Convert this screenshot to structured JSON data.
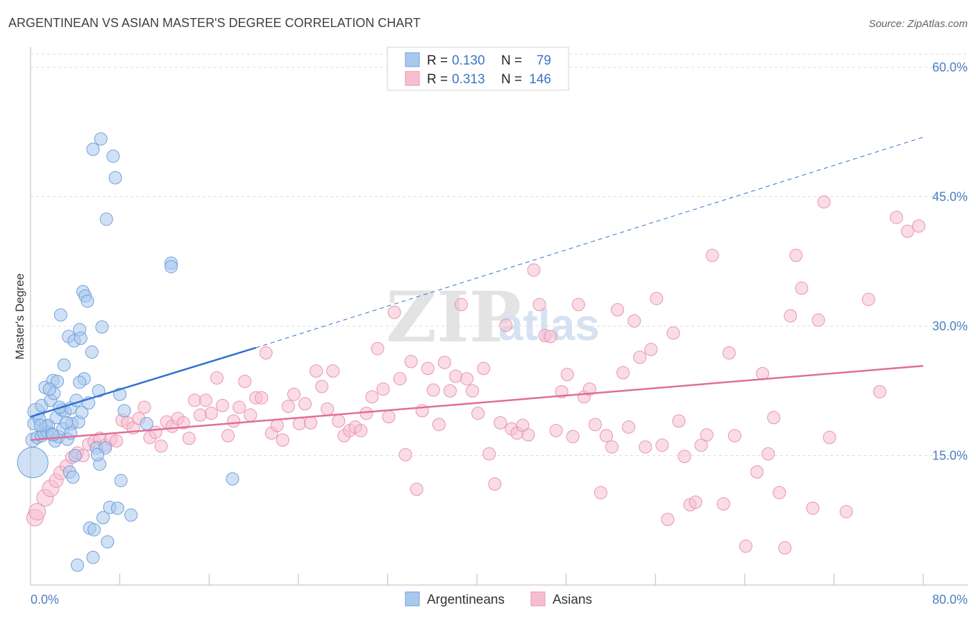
{
  "chart_data": {
    "type": "scatter",
    "title": "ARGENTINEAN VS ASIAN MASTER'S DEGREE CORRELATION CHART",
    "source": "Source: ZipAtlas.com",
    "ylabel": "Master's Degree",
    "xlim": [
      0,
      80
    ],
    "ylim": [
      0,
      60
    ],
    "y_ticks": [
      {
        "value": 15,
        "label": "15.0%"
      },
      {
        "value": 30,
        "label": "30.0%"
      },
      {
        "value": 45,
        "label": "45.0%"
      },
      {
        "value": 60,
        "label": "60.0%"
      }
    ],
    "x_tick_labels": {
      "min": "0.0%",
      "max": "80.0%"
    },
    "x_tick_values": [
      0,
      8,
      16,
      24,
      32,
      40,
      48,
      56,
      64,
      72,
      80
    ],
    "grid": true,
    "legend": {
      "placement": "top-center",
      "rows": [
        {
          "r_label": "R =",
          "r_value": "0.130",
          "n_label": "N =",
          "n_value": "79"
        },
        {
          "r_label": "R =",
          "r_value": "0.313",
          "n_label": "N =",
          "n_value": "146"
        }
      ]
    },
    "bottom_legend": [
      "Argentineans",
      "Asians"
    ],
    "watermark": {
      "zip": "ZIP",
      "atlas": "atlas"
    },
    "colors": {
      "blue_fill": "#a9c8ee",
      "blue_stroke": "#6f9fd8",
      "blue_line": "#2f6fd1",
      "pink_fill": "#f6bfd0",
      "pink_stroke": "#e993b0",
      "pink_line": "#e06d98",
      "grid": "#dddddd",
      "tick_text": "#4a7fc1"
    },
    "series": [
      {
        "name": "Argentineans",
        "trend": {
          "x0": 0,
          "y0": 19.5,
          "x1": 20.2,
          "y1": 27.5,
          "dash_to_x": 80,
          "dash_to_y": 51.9
        },
        "points": [
          [
            0.2,
            14.2,
            22
          ],
          [
            0.2,
            16.8,
            10
          ],
          [
            0.3,
            18.7,
            9
          ],
          [
            0.5,
            20.1,
            12
          ],
          [
            0.6,
            17.1,
            9
          ],
          [
            0.8,
            19.2,
            9
          ],
          [
            1.0,
            20.8,
            9
          ],
          [
            1.0,
            17.3,
            9
          ],
          [
            1.2,
            17.6,
            9
          ],
          [
            1.3,
            22.9,
            9
          ],
          [
            1.4,
            18.4,
            9
          ],
          [
            1.5,
            17.7,
            9
          ],
          [
            1.6,
            18.5,
            9
          ],
          [
            1.8,
            21.4,
            9
          ],
          [
            1.9,
            17.5,
            9
          ],
          [
            2.0,
            23.7,
            9
          ],
          [
            2.1,
            22.2,
            9
          ],
          [
            2.2,
            16.7,
            9
          ],
          [
            2.3,
            19.4,
            9
          ],
          [
            2.4,
            23.6,
            9
          ],
          [
            2.5,
            17.2,
            9
          ],
          [
            2.7,
            31.3,
            9
          ],
          [
            2.8,
            20.3,
            9
          ],
          [
            2.9,
            18.1,
            9
          ],
          [
            3.0,
            25.5,
            9
          ],
          [
            3.1,
            20.1,
            9
          ],
          [
            3.3,
            16.9,
            9
          ],
          [
            3.4,
            28.8,
            9
          ],
          [
            3.5,
            13.1,
            9
          ],
          [
            3.6,
            20.5,
            9
          ],
          [
            3.7,
            18.7,
            9
          ],
          [
            3.8,
            12.5,
            9
          ],
          [
            3.9,
            28.3,
            9
          ],
          [
            4.0,
            15.0,
            9
          ],
          [
            4.1,
            21.4,
            9
          ],
          [
            4.2,
            2.3,
            9
          ],
          [
            4.3,
            18.9,
            9
          ],
          [
            4.4,
            29.6,
            9
          ],
          [
            4.5,
            28.6,
            9
          ],
          [
            4.6,
            20.0,
            9
          ],
          [
            4.7,
            34.0,
            9
          ],
          [
            4.8,
            23.9,
            9
          ],
          [
            4.9,
            33.5,
            9
          ],
          [
            5.1,
            32.9,
            9
          ],
          [
            5.2,
            21.1,
            9
          ],
          [
            5.3,
            6.6,
            9
          ],
          [
            5.5,
            27.0,
            9
          ],
          [
            5.6,
            3.2,
            9
          ],
          [
            5.7,
            6.4,
            9
          ],
          [
            5.9,
            15.9,
            9
          ],
          [
            6.1,
            22.5,
            9
          ],
          [
            6.2,
            14.0,
            9
          ],
          [
            6.3,
            51.7,
            9
          ],
          [
            6.4,
            29.9,
            9
          ],
          [
            6.5,
            7.8,
            9
          ],
          [
            6.7,
            15.9,
            9
          ],
          [
            6.8,
            42.4,
            9
          ],
          [
            6.9,
            5.0,
            9
          ],
          [
            7.1,
            9.0,
            9
          ],
          [
            5.6,
            50.5,
            9
          ],
          [
            7.4,
            49.7,
            9
          ],
          [
            7.6,
            47.2,
            9
          ],
          [
            7.8,
            8.9,
            9
          ],
          [
            8.0,
            22.1,
            9
          ],
          [
            8.1,
            12.1,
            9
          ],
          [
            9.0,
            8.1,
            9
          ],
          [
            10.4,
            18.7,
            9
          ],
          [
            12.6,
            37.3,
            9
          ],
          [
            12.6,
            36.9,
            9
          ],
          [
            18.1,
            12.3,
            9
          ],
          [
            4.4,
            23.5,
            9
          ],
          [
            3.2,
            18.8,
            9
          ],
          [
            2.6,
            20.6,
            9
          ],
          [
            1.7,
            22.7,
            9
          ],
          [
            0.9,
            18.5,
            9
          ],
          [
            3.6,
            17.6,
            9
          ],
          [
            2.0,
            17.4,
            9
          ],
          [
            6.0,
            15.1,
            9
          ],
          [
            8.4,
            20.2,
            9
          ]
        ]
      },
      {
        "name": "Asians",
        "trend": {
          "x0": 0,
          "y0": 16.8,
          "x1": 80,
          "y1": 25.4
        },
        "points": [
          [
            0.4,
            7.8,
            12
          ],
          [
            0.6,
            8.5,
            12
          ],
          [
            1.3,
            10.1,
            12
          ],
          [
            1.8,
            11.2,
            12
          ],
          [
            2.3,
            12.1,
            10
          ],
          [
            2.7,
            13.0,
            10
          ],
          [
            3.2,
            13.8,
            9
          ],
          [
            3.7,
            14.8,
            9
          ],
          [
            4.2,
            15.3,
            9
          ],
          [
            4.7,
            15.0,
            9
          ],
          [
            5.2,
            16.3,
            9
          ],
          [
            5.7,
            16.6,
            9
          ],
          [
            6.2,
            17.0,
            9
          ],
          [
            6.7,
            16.2,
            9
          ],
          [
            7.2,
            16.9,
            9
          ],
          [
            7.7,
            16.7,
            9
          ],
          [
            8.2,
            19.1,
            9
          ],
          [
            8.7,
            18.8,
            9
          ],
          [
            9.2,
            18.2,
            9
          ],
          [
            9.7,
            19.3,
            9
          ],
          [
            10.2,
            20.6,
            9
          ],
          [
            10.7,
            17.1,
            9
          ],
          [
            11.2,
            17.7,
            9
          ],
          [
            11.7,
            16.1,
            9
          ],
          [
            12.2,
            18.9,
            9
          ],
          [
            12.7,
            18.4,
            9
          ],
          [
            13.2,
            19.3,
            9
          ],
          [
            13.7,
            18.8,
            9
          ],
          [
            14.2,
            17.0,
            9
          ],
          [
            14.7,
            21.4,
            9
          ],
          [
            15.2,
            19.7,
            9
          ],
          [
            15.7,
            21.4,
            9
          ],
          [
            16.2,
            19.9,
            9
          ],
          [
            16.7,
            24.0,
            9
          ],
          [
            17.2,
            20.8,
            9
          ],
          [
            17.7,
            17.3,
            9
          ],
          [
            18.2,
            19.0,
            9
          ],
          [
            18.7,
            20.6,
            9
          ],
          [
            19.2,
            23.6,
            9
          ],
          [
            19.7,
            19.7,
            9
          ],
          [
            20.2,
            21.7,
            9
          ],
          [
            20.7,
            21.7,
            9
          ],
          [
            21.1,
            26.9,
            9
          ],
          [
            21.6,
            17.6,
            9
          ],
          [
            22.1,
            18.5,
            9
          ],
          [
            22.6,
            16.8,
            9
          ],
          [
            23.1,
            20.7,
            9
          ],
          [
            23.6,
            22.1,
            9
          ],
          [
            24.1,
            18.7,
            9
          ],
          [
            24.6,
            21.0,
            9
          ],
          [
            25.1,
            18.8,
            9
          ],
          [
            25.6,
            24.8,
            9
          ],
          [
            26.1,
            23.0,
            9
          ],
          [
            26.6,
            20.4,
            9
          ],
          [
            27.1,
            24.8,
            9
          ],
          [
            27.6,
            19.0,
            9
          ],
          [
            28.1,
            17.3,
            9
          ],
          [
            28.6,
            17.9,
            9
          ],
          [
            29.1,
            18.3,
            9
          ],
          [
            29.6,
            17.9,
            9
          ],
          [
            30.1,
            19.9,
            9
          ],
          [
            30.6,
            21.8,
            9
          ],
          [
            31.1,
            27.4,
            9
          ],
          [
            31.6,
            22.7,
            9
          ],
          [
            32.1,
            19.5,
            9
          ],
          [
            32.6,
            31.6,
            9
          ],
          [
            33.1,
            23.9,
            9
          ],
          [
            33.6,
            15.1,
            9
          ],
          [
            34.1,
            25.9,
            9
          ],
          [
            34.6,
            11.1,
            9
          ],
          [
            35.1,
            20.2,
            9
          ],
          [
            35.6,
            25.1,
            9
          ],
          [
            36.1,
            22.6,
            9
          ],
          [
            36.6,
            18.6,
            9
          ],
          [
            37.1,
            25.8,
            9
          ],
          [
            37.6,
            22.5,
            9
          ],
          [
            38.1,
            24.2,
            9
          ],
          [
            38.6,
            32.5,
            9
          ],
          [
            39.1,
            23.9,
            9
          ],
          [
            39.6,
            22.5,
            9
          ],
          [
            40.1,
            19.9,
            9
          ],
          [
            40.6,
            25.1,
            9
          ],
          [
            41.1,
            15.2,
            9
          ],
          [
            41.6,
            11.7,
            9
          ],
          [
            42.1,
            18.8,
            9
          ],
          [
            42.6,
            30.1,
            9
          ],
          [
            43.1,
            18.1,
            9
          ],
          [
            43.6,
            17.6,
            9
          ],
          [
            44.1,
            18.5,
            9
          ],
          [
            44.6,
            17.4,
            9
          ],
          [
            45.1,
            36.5,
            9
          ],
          [
            45.6,
            32.5,
            9
          ],
          [
            46.1,
            28.9,
            9
          ],
          [
            46.6,
            28.8,
            9
          ],
          [
            47.1,
            17.9,
            9
          ],
          [
            47.6,
            22.4,
            9
          ],
          [
            48.1,
            24.4,
            9
          ],
          [
            48.6,
            17.2,
            9
          ],
          [
            49.1,
            32.5,
            9
          ],
          [
            49.6,
            21.8,
            9
          ],
          [
            50.1,
            22.7,
            9
          ],
          [
            50.6,
            18.6,
            9
          ],
          [
            51.1,
            10.7,
            9
          ],
          [
            51.6,
            17.3,
            9
          ],
          [
            52.1,
            16.0,
            9
          ],
          [
            52.6,
            31.9,
            9
          ],
          [
            53.1,
            24.6,
            9
          ],
          [
            53.6,
            18.3,
            9
          ],
          [
            54.1,
            30.6,
            9
          ],
          [
            54.6,
            26.4,
            9
          ],
          [
            55.1,
            16.0,
            9
          ],
          [
            55.6,
            27.3,
            9
          ],
          [
            56.1,
            33.2,
            9
          ],
          [
            56.6,
            16.2,
            9
          ],
          [
            57.1,
            7.6,
            9
          ],
          [
            57.6,
            29.2,
            9
          ],
          [
            58.1,
            19.0,
            9
          ],
          [
            58.6,
            14.9,
            9
          ],
          [
            59.1,
            9.3,
            9
          ],
          [
            59.6,
            9.6,
            9
          ],
          [
            60.1,
            16.2,
            9
          ],
          [
            60.6,
            17.4,
            9
          ],
          [
            61.1,
            38.2,
            9
          ],
          [
            62.1,
            9.4,
            9
          ],
          [
            62.6,
            26.9,
            9
          ],
          [
            63.1,
            17.3,
            9
          ],
          [
            64.1,
            4.5,
            9
          ],
          [
            65.1,
            13.1,
            9
          ],
          [
            65.6,
            24.5,
            9
          ],
          [
            66.1,
            15.2,
            9
          ],
          [
            66.6,
            19.4,
            9
          ],
          [
            67.1,
            10.7,
            9
          ],
          [
            67.6,
            4.3,
            9
          ],
          [
            68.1,
            31.2,
            9
          ],
          [
            68.6,
            38.2,
            9
          ],
          [
            69.1,
            34.4,
            9
          ],
          [
            70.1,
            8.9,
            9
          ],
          [
            70.6,
            30.7,
            9
          ],
          [
            71.1,
            44.4,
            9
          ],
          [
            71.6,
            17.1,
            9
          ],
          [
            73.1,
            8.5,
            9
          ],
          [
            75.1,
            33.1,
            9
          ],
          [
            76.1,
            22.4,
            9
          ],
          [
            77.6,
            42.6,
            9
          ],
          [
            78.6,
            41.0,
            9
          ],
          [
            79.6,
            41.6,
            9
          ]
        ]
      }
    ]
  }
}
